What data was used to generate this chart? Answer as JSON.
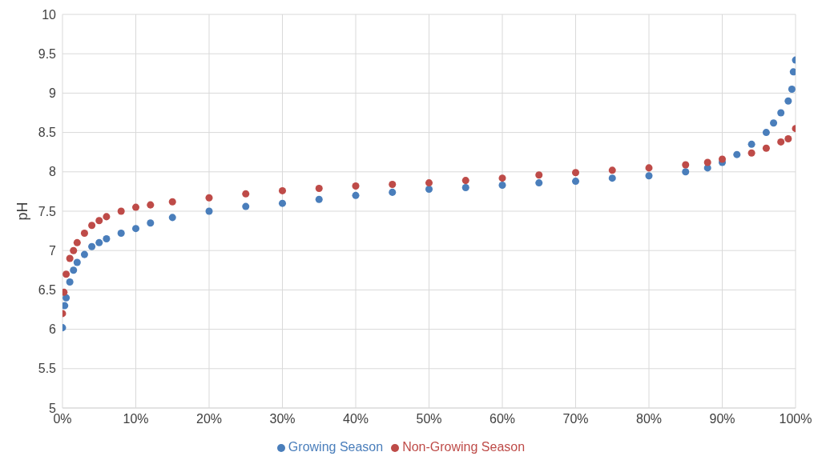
{
  "chart_data": {
    "type": "scatter",
    "ylabel": "pH",
    "xlim": [
      0,
      100
    ],
    "xticks": [
      {
        "value": 0,
        "label": "0%"
      },
      {
        "value": 10,
        "label": "10%"
      },
      {
        "value": 20,
        "label": "20%"
      },
      {
        "value": 30,
        "label": "30%"
      },
      {
        "value": 40,
        "label": "40%"
      },
      {
        "value": 50,
        "label": "50%"
      },
      {
        "value": 60,
        "label": "60%"
      },
      {
        "value": 70,
        "label": "70%"
      },
      {
        "value": 80,
        "label": "80%"
      },
      {
        "value": 90,
        "label": "90%"
      },
      {
        "value": 100,
        "label": "100%"
      }
    ],
    "ylim": [
      5,
      10
    ],
    "yticks": [
      5,
      5.5,
      6,
      6.5,
      7,
      7.5,
      8,
      8.5,
      9,
      9.5,
      10
    ],
    "grid": true,
    "legend": "bottom",
    "marker": "circle",
    "series": [
      {
        "name": "Growing Season",
        "color": "#4a7ebb",
        "x": [
          0,
          0.3,
          0.5,
          1,
          1.5,
          2,
          3,
          4,
          5,
          6,
          8,
          10,
          12,
          15,
          20,
          25,
          30,
          35,
          40,
          45,
          50,
          55,
          60,
          65,
          70,
          75,
          80,
          85,
          88,
          90,
          92,
          94,
          96,
          97,
          98,
          99,
          99.5,
          99.7,
          100
        ],
        "values": [
          6.02,
          6.3,
          6.4,
          6.6,
          6.75,
          6.85,
          6.95,
          7.05,
          7.1,
          7.15,
          7.22,
          7.28,
          7.35,
          7.42,
          7.5,
          7.56,
          7.6,
          7.65,
          7.7,
          7.74,
          7.78,
          7.8,
          7.83,
          7.86,
          7.88,
          7.92,
          7.95,
          8,
          8.05,
          8.12,
          8.22,
          8.35,
          8.5,
          8.62,
          8.75,
          8.9,
          9.05,
          9.27,
          9.42
        ]
      },
      {
        "name": "Non-Growing Season",
        "color": "#be4b48",
        "x": [
          0,
          0.2,
          0.5,
          1,
          1.5,
          2,
          3,
          4,
          5,
          6,
          8,
          10,
          12,
          15,
          20,
          25,
          30,
          35,
          40,
          45,
          50,
          55,
          60,
          65,
          70,
          75,
          80,
          85,
          88,
          90,
          94,
          96,
          98,
          99,
          100
        ],
        "values": [
          6.2,
          6.47,
          6.7,
          6.9,
          7,
          7.1,
          7.22,
          7.32,
          7.38,
          7.43,
          7.5,
          7.55,
          7.58,
          7.62,
          7.67,
          7.72,
          7.76,
          7.79,
          7.82,
          7.84,
          7.86,
          7.89,
          7.92,
          7.96,
          7.99,
          8.02,
          8.05,
          8.09,
          8.12,
          8.16,
          8.24,
          8.3,
          8.38,
          8.42,
          8.55
        ]
      }
    ]
  }
}
